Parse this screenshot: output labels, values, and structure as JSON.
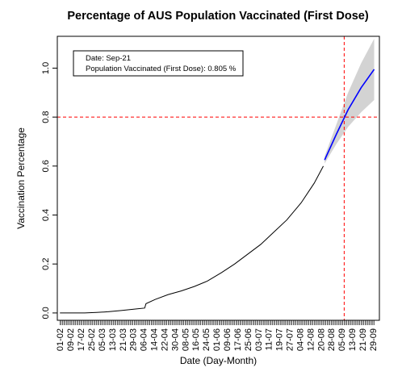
{
  "chart_data": {
    "type": "line",
    "title": "Percentage of AUS Population Vaccinated (First Dose)",
    "xlabel": "Date (Day-Month)",
    "ylabel": "Vaccination Percentage",
    "ylim": [
      -0.03,
      1.13
    ],
    "yticks": [
      0.0,
      0.2,
      0.4,
      0.6,
      0.8,
      1.0
    ],
    "ytick_labels": [
      "0.0",
      "0.2",
      "0.4",
      "0.6",
      "0.8",
      "1.0"
    ],
    "x_tick_labels": [
      "01-02",
      "09-02",
      "17-02",
      "25-02",
      "05-03",
      "13-03",
      "21-03",
      "29-03",
      "06-04",
      "14-04",
      "22-04",
      "30-04",
      "08-05",
      "16-05",
      "24-05",
      "01-06",
      "09-06",
      "17-06",
      "25-06",
      "03-07",
      "11-07",
      "19-07",
      "27-07",
      "04-08",
      "12-08",
      "20-08",
      "28-08",
      "05-09",
      "13-09",
      "21-09",
      "29-09"
    ],
    "x_domain": [
      "2021-01-30",
      "2021-10-04"
    ],
    "series": [
      {
        "name": "",
        "color": "#000000",
        "style": "solid",
        "points": [
          [
            "2021-02-01",
            0.0
          ],
          [
            "2021-02-20",
            0.0
          ],
          [
            "2021-03-01",
            0.002
          ],
          [
            "2021-03-10",
            0.005
          ],
          [
            "2021-03-20",
            0.01
          ],
          [
            "2021-03-31",
            0.016
          ],
          [
            "2021-04-07",
            0.02
          ],
          [
            "2021-04-08",
            0.038
          ],
          [
            "2021-04-15",
            0.055
          ],
          [
            "2021-04-25",
            0.075
          ],
          [
            "2021-05-05",
            0.09
          ],
          [
            "2021-05-15",
            0.108
          ],
          [
            "2021-05-25",
            0.13
          ],
          [
            "2021-06-05",
            0.165
          ],
          [
            "2021-06-15",
            0.2
          ],
          [
            "2021-06-25",
            0.24
          ],
          [
            "2021-07-05",
            0.28
          ],
          [
            "2021-07-15",
            0.33
          ],
          [
            "2021-07-25",
            0.38
          ],
          [
            "2021-08-05",
            0.45
          ],
          [
            "2021-08-15",
            0.53
          ],
          [
            "2021-08-22",
            0.6
          ]
        ]
      },
      {
        "name": "",
        "color": "#0000ff",
        "style": "solid",
        "points": [
          [
            "2021-08-23",
            0.625
          ],
          [
            "2021-09-01",
            0.73
          ],
          [
            "2021-09-10",
            0.83
          ],
          [
            "2021-09-20",
            0.92
          ],
          [
            "2021-09-30",
            0.995
          ]
        ]
      }
    ],
    "confidence_band": {
      "color": "#d3d3d3",
      "upper": [
        [
          "2021-08-23",
          0.64
        ],
        [
          "2021-09-01",
          0.77
        ],
        [
          "2021-09-10",
          0.9
        ],
        [
          "2021-09-20",
          1.02
        ],
        [
          "2021-09-30",
          1.12
        ]
      ],
      "lower": [
        [
          "2021-08-23",
          0.61
        ],
        [
          "2021-09-01",
          0.69
        ],
        [
          "2021-09-10",
          0.76
        ],
        [
          "2021-09-20",
          0.82
        ],
        [
          "2021-09-30",
          0.87
        ]
      ]
    },
    "reference_lines": {
      "color": "#ff0000",
      "style": "dashed",
      "horizontal_y": 0.8,
      "vertical_date": "2021-09-07"
    },
    "legend": {
      "placement": "top-left",
      "lines": [
        "Date:  Sep-21",
        "Population Vaccinated (First Dose):  0.805 %"
      ]
    },
    "grid": false
  }
}
